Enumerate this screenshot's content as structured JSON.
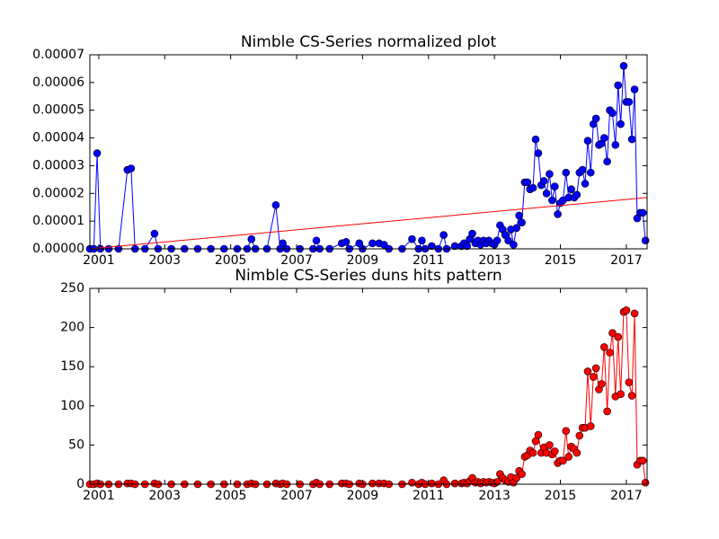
{
  "chart_data": [
    {
      "type": "line",
      "title": "Nimble CS-Series normalized plot",
      "x": [
        2000.73,
        2000.85,
        2000.95,
        2001.05,
        2001.3,
        2001.6,
        2001.87,
        2001.98,
        2002.1,
        2002.4,
        2002.69,
        2002.8,
        2003.2,
        2003.6,
        2004.0,
        2004.4,
        2004.8,
        2005.2,
        2005.5,
        2005.63,
        2005.75,
        2006.1,
        2006.37,
        2006.5,
        2006.58,
        2006.7,
        2007.1,
        2007.5,
        2007.6,
        2007.7,
        2008.0,
        2008.37,
        2008.5,
        2008.6,
        2008.9,
        2009.0,
        2009.3,
        2009.5,
        2009.65,
        2009.8,
        2010.2,
        2010.5,
        2010.7,
        2010.8,
        2010.9,
        2011.1,
        2011.3,
        2011.46,
        2011.55,
        2011.8,
        2012.0,
        2012.08,
        2012.17,
        2012.25,
        2012.33,
        2012.42,
        2012.5,
        2012.58,
        2012.67,
        2012.75,
        2012.83,
        2012.92,
        2013.0,
        2013.08,
        2013.17,
        2013.25,
        2013.33,
        2013.42,
        2013.5,
        2013.58,
        2013.67,
        2013.75,
        2013.83,
        2013.92,
        2014.0,
        2014.08,
        2014.17,
        2014.25,
        2014.33,
        2014.42,
        2014.5,
        2014.58,
        2014.67,
        2014.75,
        2014.83,
        2014.92,
        2015.0,
        2015.08,
        2015.17,
        2015.25,
        2015.33,
        2015.42,
        2015.5,
        2015.58,
        2015.67,
        2015.75,
        2015.83,
        2015.92,
        2016.0,
        2016.08,
        2016.17,
        2016.25,
        2016.33,
        2016.42,
        2016.5,
        2016.58,
        2016.67,
        2016.75,
        2016.83,
        2016.92,
        2017.0,
        2017.08,
        2017.17,
        2017.25,
        2017.33,
        2017.42,
        2017.5,
        2017.58
      ],
      "series": [
        {
          "color": "#0000ff",
          "marker": true,
          "values": [
            0,
            0,
            3.45e-05,
            0,
            0,
            0,
            2.85e-05,
            2.9e-05,
            0,
            0,
            5.5e-06,
            0,
            0,
            0,
            0,
            0,
            0,
            0,
            0,
            3.5e-06,
            0,
            0,
            1.58e-05,
            0,
            2e-06,
            0,
            0,
            0,
            3e-06,
            0,
            0,
            2e-06,
            2.5e-06,
            0,
            2e-06,
            0,
            2e-06,
            2e-06,
            1.5e-06,
            0,
            0,
            3.5e-06,
            0,
            3e-06,
            0,
            1e-06,
            0,
            5e-06,
            0,
            1e-06,
            1e-06,
            2e-06,
            1e-06,
            3.5e-06,
            5.5e-06,
            2e-06,
            3e-06,
            1.5e-06,
            3e-06,
            2e-06,
            3e-06,
            2e-06,
            1.5e-06,
            3e-06,
            8.5e-06,
            7e-06,
            5e-06,
            3e-06,
            7e-06,
            1.5e-06,
            7.5e-06,
            1.2e-05,
            9.5e-06,
            2.4e-05,
            2.4e-05,
            2.15e-05,
            2.2e-05,
            3.95e-05,
            3.45e-05,
            2.3e-05,
            2.45e-05,
            2e-05,
            2.7e-05,
            1.75e-05,
            2.25e-05,
            1.25e-05,
            1.65e-05,
            1.75e-05,
            2.75e-05,
            1.85e-05,
            2.15e-05,
            1.85e-05,
            1.95e-05,
            2.75e-05,
            2.85e-05,
            2.35e-05,
            3.9e-05,
            2.75e-05,
            4.5e-05,
            4.7e-05,
            3.75e-05,
            3.8e-05,
            4e-05,
            3.15e-05,
            5e-05,
            4.9e-05,
            3.75e-05,
            5.9e-05,
            4.5e-05,
            6.6e-05,
            5.3e-05,
            5.3e-05,
            3.95e-05,
            5.75e-05,
            1.1e-05,
            1.3e-05,
            1.3e-05,
            3e-06
          ]
        },
        {
          "color": "#ff0000",
          "marker": false,
          "x": [
            2000.73,
            2017.63
          ],
          "values": [
            0,
            1.85e-05
          ]
        }
      ],
      "xlim": [
        2000.73,
        2017.63
      ],
      "xticks": [
        2001,
        2003,
        2005,
        2007,
        2009,
        2011,
        2013,
        2015,
        2017
      ],
      "ylim": [
        0,
        7e-05
      ],
      "yticks": [
        {
          "value": 0,
          "label": "0.00000"
        },
        1e-05,
        2e-05,
        3e-05,
        4e-05,
        5e-05,
        6e-05,
        7e-05
      ]
    },
    {
      "type": "line",
      "title": "Nimble CS-Series duns hits pattern",
      "x": [
        2000.73,
        2000.85,
        2000.95,
        2001.05,
        2001.3,
        2001.6,
        2001.87,
        2001.98,
        2002.1,
        2002.4,
        2002.69,
        2002.8,
        2003.2,
        2003.6,
        2004.0,
        2004.4,
        2004.8,
        2005.2,
        2005.5,
        2005.63,
        2005.75,
        2006.1,
        2006.37,
        2006.5,
        2006.58,
        2006.7,
        2007.1,
        2007.5,
        2007.6,
        2007.7,
        2008.0,
        2008.37,
        2008.5,
        2008.6,
        2008.9,
        2009.0,
        2009.3,
        2009.5,
        2009.65,
        2009.8,
        2010.2,
        2010.5,
        2010.7,
        2010.8,
        2010.9,
        2011.1,
        2011.3,
        2011.46,
        2011.55,
        2011.8,
        2012.0,
        2012.08,
        2012.17,
        2012.25,
        2012.33,
        2012.42,
        2012.5,
        2012.58,
        2012.67,
        2012.75,
        2012.83,
        2012.92,
        2013.0,
        2013.08,
        2013.17,
        2013.25,
        2013.33,
        2013.42,
        2013.5,
        2013.58,
        2013.67,
        2013.75,
        2013.83,
        2013.92,
        2014.0,
        2014.08,
        2014.17,
        2014.25,
        2014.33,
        2014.42,
        2014.5,
        2014.58,
        2014.67,
        2014.75,
        2014.83,
        2014.92,
        2015.0,
        2015.08,
        2015.17,
        2015.25,
        2015.33,
        2015.42,
        2015.5,
        2015.58,
        2015.67,
        2015.75,
        2015.83,
        2015.92,
        2016.0,
        2016.08,
        2016.17,
        2016.25,
        2016.33,
        2016.42,
        2016.5,
        2016.58,
        2016.67,
        2016.75,
        2016.83,
        2016.92,
        2017.0,
        2017.08,
        2017.17,
        2017.25,
        2017.33,
        2017.42,
        2017.5,
        2017.58
      ],
      "series": [
        {
          "color": "#ff0000",
          "marker": true,
          "values": [
            0,
            0,
            1,
            0,
            0,
            0,
            1,
            1,
            0,
            0,
            1,
            0,
            0,
            0,
            0,
            0,
            0,
            0,
            0,
            1,
            0,
            0,
            1,
            0,
            1,
            0,
            0,
            0,
            2,
            0,
            0,
            1,
            1,
            0,
            1,
            0,
            1,
            1,
            1,
            0,
            0,
            2,
            0,
            2,
            0,
            1,
            0,
            5,
            0,
            1,
            1,
            2,
            1,
            4,
            8,
            2,
            3,
            1,
            3,
            2,
            3,
            2,
            1,
            3,
            13,
            8,
            5,
            3,
            9,
            2,
            8,
            17,
            13,
            35,
            37,
            43,
            40,
            55,
            63,
            40,
            47,
            40,
            50,
            38,
            42,
            27,
            30,
            30,
            68,
            35,
            48,
            45,
            40,
            62,
            72,
            72,
            144,
            74,
            137,
            148,
            121,
            128,
            175,
            93,
            168,
            193,
            112,
            188,
            115,
            220,
            222,
            130,
            113,
            218,
            25,
            30,
            30,
            2
          ]
        }
      ],
      "xlim": [
        2000.73,
        2017.63
      ],
      "xticks": [
        2001,
        2003,
        2005,
        2007,
        2009,
        2011,
        2013,
        2015,
        2017
      ],
      "ylim": [
        0,
        250
      ],
      "yticks": [
        0,
        50,
        100,
        150,
        200,
        250
      ]
    }
  ]
}
